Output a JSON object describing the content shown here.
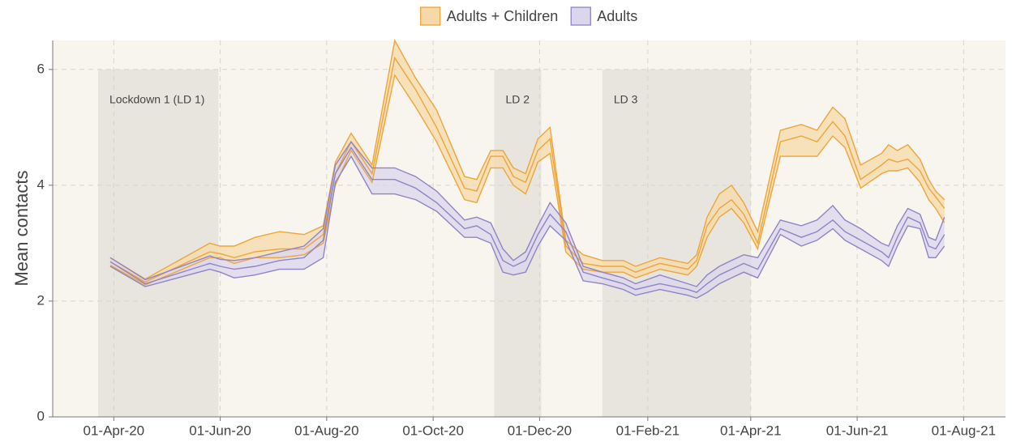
{
  "chart_data": {
    "type": "line-band",
    "y_label": "Mean contacts",
    "x": [
      "2020-03-30",
      "2020-04-19",
      "2020-05-26",
      "2020-06-01",
      "2020-06-09",
      "2020-06-21",
      "2020-07-05",
      "2020-07-19",
      "2020-07-30",
      "2020-08-06",
      "2020-08-15",
      "2020-08-27",
      "2020-09-09",
      "2020-09-21",
      "2020-10-03",
      "2020-10-19",
      "2020-10-26",
      "2020-11-03",
      "2020-11-10",
      "2020-11-16",
      "2020-11-23",
      "2020-11-30",
      "2020-12-07",
      "2020-12-16",
      "2020-12-26",
      "2021-01-06",
      "2021-01-18",
      "2021-01-25",
      "2021-02-08",
      "2021-02-24",
      "2021-03-01",
      "2021-03-07",
      "2021-03-14",
      "2021-03-21",
      "2021-03-28",
      "2021-04-05",
      "2021-04-18",
      "2021-04-30",
      "2021-05-09",
      "2021-05-18",
      "2021-05-25",
      "2021-06-03",
      "2021-06-15",
      "2021-06-19",
      "2021-06-24",
      "2021-06-30",
      "2021-07-07",
      "2021-07-12",
      "2021-07-16",
      "2021-07-21"
    ],
    "series": [
      {
        "name": "Adults + Children",
        "color": "#eea53a",
        "fill": "#f6d9a8",
        "values": [
          2.68,
          2.33,
          2.85,
          2.82,
          2.75,
          2.85,
          2.9,
          2.9,
          3.15,
          4.2,
          4.75,
          4.2,
          6.2,
          5.65,
          5.0,
          3.95,
          3.9,
          4.5,
          4.5,
          4.15,
          4.05,
          4.6,
          4.8,
          2.95,
          2.65,
          2.6,
          2.6,
          2.5,
          2.65,
          2.55,
          2.7,
          3.3,
          3.6,
          3.75,
          3.5,
          3.0,
          4.75,
          4.85,
          4.75,
          5.1,
          4.85,
          4.1,
          4.35,
          4.45,
          4.4,
          4.45,
          4.25,
          3.95,
          3.8,
          3.6
        ],
        "lower": [
          2.62,
          2.28,
          2.75,
          2.75,
          2.65,
          2.75,
          2.75,
          2.8,
          3.0,
          4.0,
          4.6,
          4.05,
          5.9,
          5.35,
          4.75,
          3.75,
          3.7,
          4.3,
          4.3,
          4.0,
          3.85,
          4.4,
          4.55,
          2.85,
          2.55,
          2.5,
          2.5,
          2.4,
          2.55,
          2.45,
          2.6,
          3.1,
          3.45,
          3.6,
          3.35,
          2.9,
          4.5,
          4.5,
          4.5,
          4.85,
          4.65,
          3.95,
          4.2,
          4.25,
          4.25,
          4.3,
          4.05,
          3.75,
          3.6,
          3.35
        ],
        "upper": [
          2.75,
          2.38,
          3.0,
          2.95,
          2.95,
          3.1,
          3.2,
          3.15,
          3.3,
          4.4,
          4.9,
          4.35,
          6.5,
          5.85,
          5.3,
          4.15,
          4.1,
          4.6,
          4.6,
          4.3,
          4.2,
          4.8,
          5.0,
          3.05,
          2.8,
          2.7,
          2.7,
          2.6,
          2.75,
          2.65,
          2.8,
          3.45,
          3.85,
          4.0,
          3.7,
          3.2,
          4.95,
          5.05,
          4.95,
          5.35,
          5.15,
          4.35,
          4.55,
          4.7,
          4.6,
          4.7,
          4.45,
          4.1,
          3.9,
          3.75
        ]
      },
      {
        "name": "Adults",
        "color": "#8f84c4",
        "fill": "#dcd6ec",
        "values": [
          2.68,
          2.3,
          2.65,
          2.6,
          2.55,
          2.6,
          2.7,
          2.75,
          3.05,
          4.2,
          4.65,
          4.1,
          4.1,
          3.95,
          3.7,
          3.25,
          3.3,
          3.15,
          2.7,
          2.6,
          2.7,
          3.15,
          3.5,
          3.2,
          2.5,
          2.4,
          2.3,
          2.2,
          2.3,
          2.2,
          2.15,
          2.3,
          2.45,
          2.55,
          2.65,
          2.55,
          3.25,
          3.1,
          3.2,
          3.4,
          3.2,
          3.05,
          2.85,
          2.75,
          3.1,
          3.45,
          3.35,
          2.95,
          2.9,
          3.15
        ],
        "lower": [
          2.6,
          2.25,
          2.55,
          2.5,
          2.4,
          2.45,
          2.55,
          2.55,
          2.75,
          4.05,
          4.5,
          3.85,
          3.85,
          3.75,
          3.55,
          3.1,
          3.1,
          3.0,
          2.5,
          2.45,
          2.5,
          2.95,
          3.3,
          3.05,
          2.35,
          2.3,
          2.2,
          2.1,
          2.2,
          2.1,
          2.05,
          2.15,
          2.3,
          2.4,
          2.5,
          2.4,
          3.15,
          2.95,
          3.05,
          3.25,
          3.05,
          2.9,
          2.7,
          2.6,
          2.95,
          3.3,
          3.25,
          2.75,
          2.75,
          2.95
        ],
        "upper": [
          2.75,
          2.37,
          2.78,
          2.72,
          2.7,
          2.75,
          2.85,
          2.95,
          3.25,
          4.35,
          4.75,
          4.3,
          4.3,
          4.15,
          3.9,
          3.4,
          3.45,
          3.35,
          2.9,
          2.7,
          2.85,
          3.3,
          3.7,
          3.35,
          2.6,
          2.5,
          2.4,
          2.3,
          2.45,
          2.3,
          2.25,
          2.45,
          2.6,
          2.7,
          2.8,
          2.75,
          3.4,
          3.3,
          3.4,
          3.65,
          3.4,
          3.25,
          3.0,
          2.95,
          3.3,
          3.6,
          3.5,
          3.1,
          3.05,
          3.45
        ]
      }
    ],
    "annotations": [
      {
        "label": "Lockdown 1 (LD 1)",
        "start": "2020-03-23",
        "end": "2020-05-31"
      },
      {
        "label": "LD 2",
        "start": "2020-11-05",
        "end": "2020-12-02"
      },
      {
        "label": "LD 3",
        "start": "2021-01-06",
        "end": "2021-04-01"
      }
    ],
    "xlim": [
      "2020-02-26",
      "2021-08-25"
    ],
    "xticks": [
      {
        "value": "2020-04-01",
        "label": "01-Apr-20"
      },
      {
        "value": "2020-06-01",
        "label": "01-Jun-20"
      },
      {
        "value": "2020-08-01",
        "label": "01-Aug-20"
      },
      {
        "value": "2020-10-01",
        "label": "01-Oct-20"
      },
      {
        "value": "2020-12-01",
        "label": "01-Dec-20"
      },
      {
        "value": "2021-02-01",
        "label": "01-Feb-21"
      },
      {
        "value": "2021-04-01",
        "label": "01-Apr-21"
      },
      {
        "value": "2021-06-01",
        "label": "01-Jun-21"
      },
      {
        "value": "2021-08-01",
        "label": "01-Aug-21"
      }
    ],
    "ylim": [
      0,
      6.5
    ],
    "yticks": [
      0,
      2,
      4,
      6
    ],
    "grid": true,
    "legend": "top"
  }
}
